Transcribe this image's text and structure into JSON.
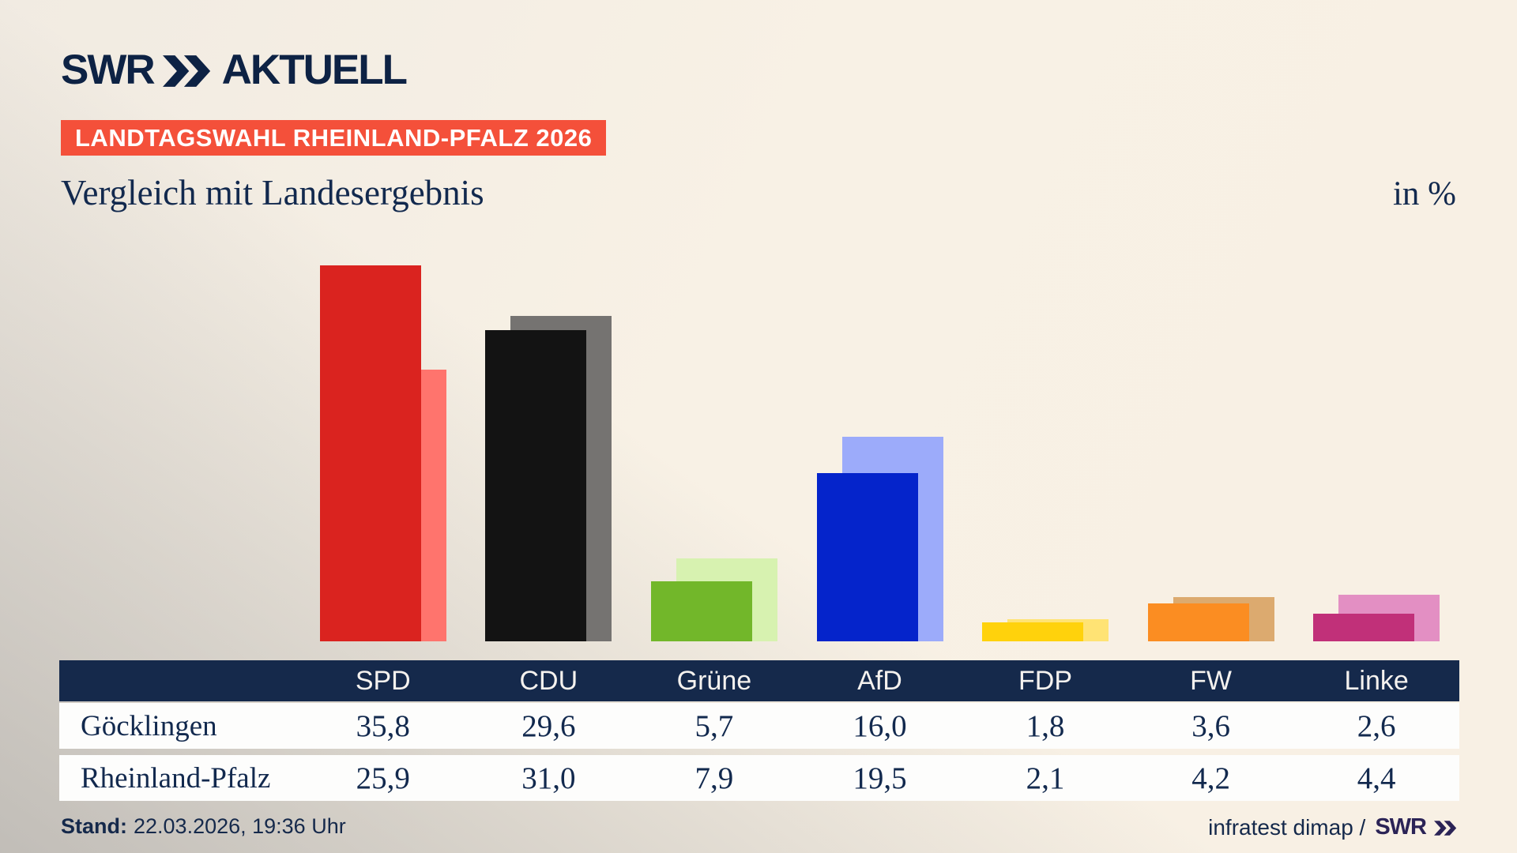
{
  "brand": {
    "swr": "SWR",
    "aktuell": "AKTUELL"
  },
  "badge": "LANDTAGSWAHL RHEINLAND-PFALZ 2026",
  "title": "Vergleich mit Landesergebnis",
  "unit_label": "in %",
  "chart_data": {
    "type": "bar",
    "title": "Vergleich mit Landesergebnis",
    "unit": "%",
    "categories": [
      "SPD",
      "CDU",
      "Grüne",
      "AfD",
      "FDP",
      "FW",
      "Linke"
    ],
    "series": [
      {
        "name": "Göcklingen",
        "values": [
          35.8,
          29.6,
          5.7,
          16.0,
          1.8,
          3.6,
          2.6
        ]
      },
      {
        "name": "Rheinland-Pfalz",
        "values": [
          25.9,
          31.0,
          7.9,
          19.5,
          2.1,
          4.2,
          4.4
        ]
      }
    ],
    "party_colors": [
      {
        "fg": "#da231f",
        "bg": "#ff746d"
      },
      {
        "fg": "#131313",
        "bg": "#757371"
      },
      {
        "fg": "#72b72a",
        "bg": "#d7f2b0"
      },
      {
        "fg": "#0524cb",
        "bg": "#9cabfa"
      },
      {
        "fg": "#ffd20c",
        "bg": "#ffe374"
      },
      {
        "fg": "#fb8d22",
        "bg": "#dcaa6f"
      },
      {
        "fg": "#c13079",
        "bg": "#e38fc3"
      }
    ],
    "legend_position": "table-below",
    "grid": false,
    "ylim": [
      0,
      40
    ]
  },
  "table": {
    "rows": [
      {
        "label": "Göcklingen",
        "values": [
          "35,8",
          "29,6",
          "5,7",
          "16,0",
          "1,8",
          "3,6",
          "2,6"
        ]
      },
      {
        "label": "Rheinland-Pfalz",
        "values": [
          "25,9",
          "31,0",
          "7,9",
          "19,5",
          "2,1",
          "4,2",
          "4,4"
        ]
      }
    ]
  },
  "footer": {
    "stand_label": "Stand:",
    "stand_value": "22.03.2026, 19:36 Uhr",
    "source_text": "infratest dimap /",
    "source_brand": "SWR"
  },
  "colors": {
    "navy": "#15294b",
    "text_navy": "#12294e",
    "badge_red": "#f4503a",
    "background_cream": "#f8f0e4",
    "row_white": "#fdfdfc"
  }
}
